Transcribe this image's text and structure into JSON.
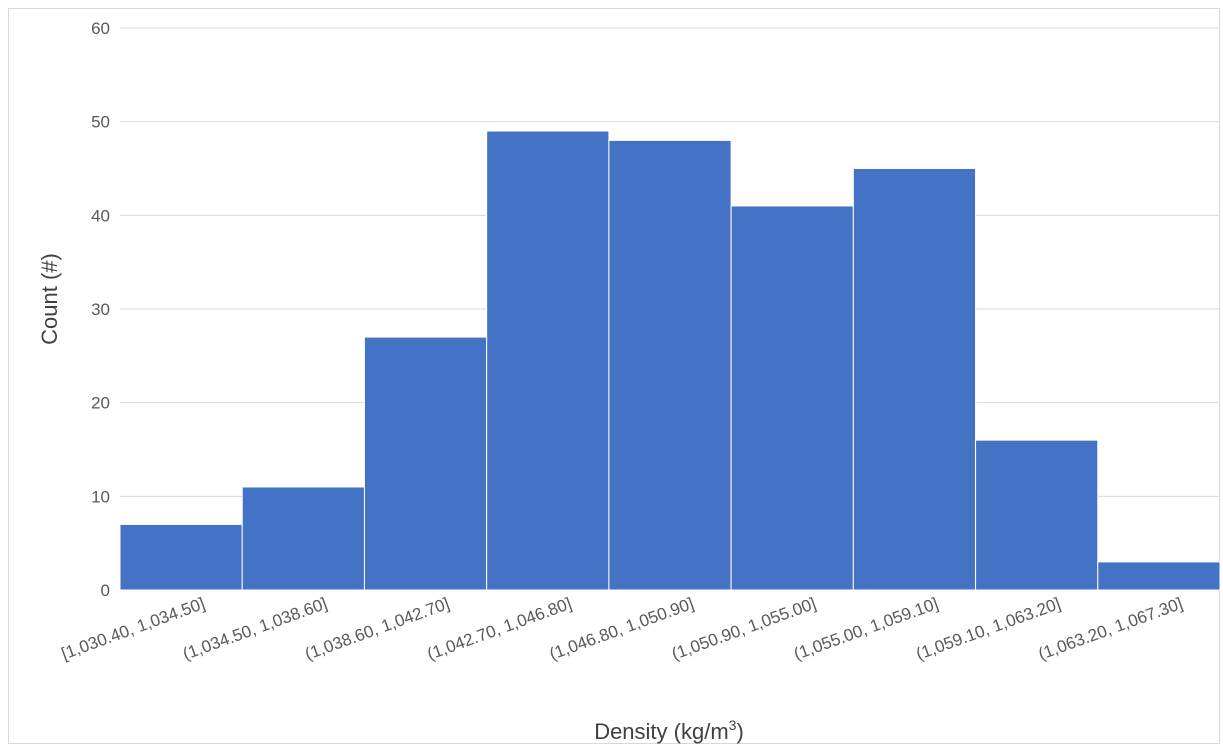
{
  "chart_data": {
    "type": "bar",
    "title": "",
    "xlabel": "Density (kg/m",
    "xlabel_sup": "3",
    "xlabel_suffix": ")",
    "ylabel": "Count (#)",
    "categories": [
      "[1,030.40, 1,034.50]",
      "(1,034.50, 1,038.60]",
      "(1,038.60, 1,042.70]",
      "(1,042.70, 1,046.80]",
      "(1,046.80, 1,050.90]",
      "(1,050.90, 1,055.00]",
      "(1,055.00, 1,059.10]",
      "(1,059.10, 1,063.20]",
      "(1,063.20, 1,067.30]"
    ],
    "values": [
      7,
      11,
      27,
      49,
      48,
      41,
      45,
      16,
      3
    ],
    "ylim": [
      0,
      60
    ],
    "yticks": [
      0,
      10,
      20,
      30,
      40,
      50,
      60
    ],
    "grid": true,
    "legend": "none",
    "bar_color": "#4472C4"
  }
}
